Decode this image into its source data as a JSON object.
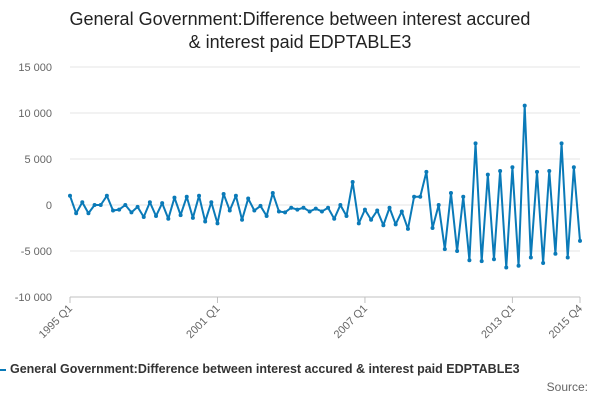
{
  "chart_data": {
    "type": "line",
    "title": [
      "General Government:Difference between interest accured",
      "& interest paid EDPTABLE3"
    ],
    "x_tick_labels": [
      "1995 Q1",
      "2001 Q1",
      "2007 Q1",
      "2013 Q1",
      "2015 Q4"
    ],
    "y_tick_labels": [
      "15 000",
      "10 000",
      "5 000",
      "0",
      "-5 000",
      "-10 000"
    ],
    "y_ticks": [
      15000,
      10000,
      5000,
      0,
      -5000,
      -10000
    ],
    "ylim": [
      -10000,
      15000
    ],
    "grid": true,
    "legend_position": "bottom-left",
    "series": [
      {
        "name": "General Government:Difference between interest accured & interest paid EDPTABLE3",
        "color": "#0a7ab8",
        "x": [
          "1995 Q1",
          "1995 Q2",
          "1995 Q3",
          "1995 Q4",
          "1996 Q1",
          "1996 Q2",
          "1996 Q3",
          "1996 Q4",
          "1997 Q1",
          "1997 Q2",
          "1997 Q3",
          "1997 Q4",
          "1998 Q1",
          "1998 Q2",
          "1998 Q3",
          "1998 Q4",
          "1999 Q1",
          "1999 Q2",
          "1999 Q3",
          "1999 Q4",
          "2000 Q1",
          "2000 Q2",
          "2000 Q3",
          "2000 Q4",
          "2001 Q1",
          "2001 Q2",
          "2001 Q3",
          "2001 Q4",
          "2002 Q1",
          "2002 Q2",
          "2002 Q3",
          "2002 Q4",
          "2003 Q1",
          "2003 Q2",
          "2003 Q3",
          "2003 Q4",
          "2004 Q1",
          "2004 Q2",
          "2004 Q3",
          "2004 Q4",
          "2005 Q1",
          "2005 Q2",
          "2005 Q3",
          "2005 Q4",
          "2006 Q1",
          "2006 Q2",
          "2006 Q3",
          "2006 Q4",
          "2007 Q1",
          "2007 Q2",
          "2007 Q3",
          "2007 Q4",
          "2008 Q1",
          "2008 Q2",
          "2008 Q3",
          "2008 Q4",
          "2009 Q1",
          "2009 Q2",
          "2009 Q3",
          "2009 Q4",
          "2010 Q1",
          "2010 Q2",
          "2010 Q3",
          "2010 Q4",
          "2011 Q1",
          "2011 Q2",
          "2011 Q3",
          "2011 Q4",
          "2012 Q1",
          "2012 Q2",
          "2012 Q3",
          "2012 Q4",
          "2013 Q1",
          "2013 Q2",
          "2013 Q3",
          "2013 Q4",
          "2014 Q1",
          "2014 Q2",
          "2014 Q3",
          "2014 Q4",
          "2015 Q1",
          "2015 Q2",
          "2015 Q3",
          "2015 Q4"
        ],
        "values": [
          1000,
          -900,
          300,
          -900,
          0,
          0,
          1000,
          -600,
          -500,
          0,
          -800,
          -200,
          -1300,
          300,
          -1200,
          200,
          -1500,
          800,
          -1100,
          900,
          -1400,
          1000,
          -1800,
          300,
          -2000,
          1200,
          -600,
          1000,
          -1600,
          700,
          -600,
          -100,
          -1200,
          1300,
          -700,
          -800,
          -300,
          -500,
          -300,
          -700,
          -400,
          -700,
          -300,
          -1500,
          0,
          -1200,
          2500,
          -2000,
          -500,
          -1600,
          -600,
          -2200,
          -300,
          -2100,
          -700,
          -2600,
          900,
          900,
          3600,
          -2500,
          0,
          -4800,
          1300,
          -5000,
          900,
          -6000,
          6700,
          -6100,
          3300,
          -5900,
          3700,
          -6800,
          4100,
          -6600,
          10800,
          -5700,
          3600,
          -6300,
          3700,
          -5300,
          6700,
          -5700,
          4100,
          -3900
        ]
      }
    ]
  },
  "legend": {
    "label": "General Government:Difference between interest accured & interest paid EDPTABLE3"
  },
  "source": {
    "label": "Source:"
  }
}
